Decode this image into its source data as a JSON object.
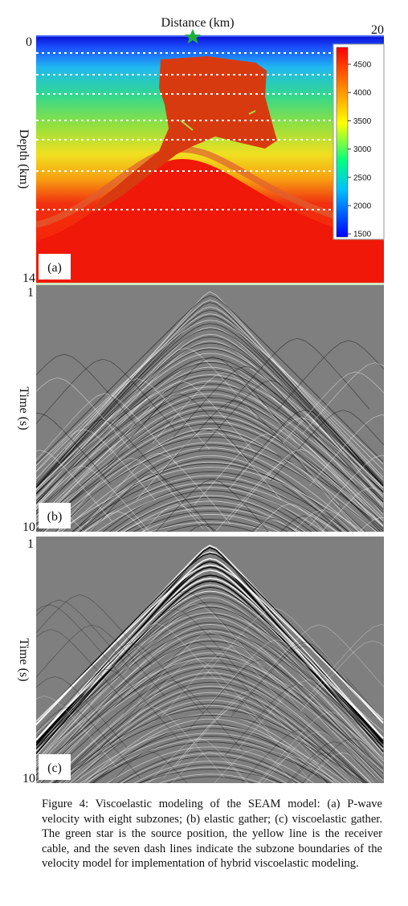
{
  "figure": {
    "x_label": "Distance (km)",
    "x_left": 0,
    "x_right": 20,
    "panels": [
      {
        "label": "(a)",
        "y_label": "Depth (km)",
        "y_top": 0,
        "y_bottom": 14,
        "colorbar_ticks": [
          4500,
          4000,
          3500,
          3000,
          2500,
          2000,
          1500
        ]
      },
      {
        "label": "(b)",
        "y_label": "Time (s)",
        "y_top": 1,
        "y_bottom": 10
      },
      {
        "label": "(c)",
        "y_label": "Time (s)",
        "y_top": 1,
        "y_bottom": 10
      }
    ],
    "caption": "Figure 4: Viscoelastic modeling of the SEAM model: (a) P-wave velocity with eight subzones; (b) elastic gather; (c) viscoelastic gather. The green star is the source position, the yellow line is the receiver cable, and the seven dash lines indicate the subzone boundaries of the velocity model for implementation of hybrid viscoelastic modeling."
  }
}
